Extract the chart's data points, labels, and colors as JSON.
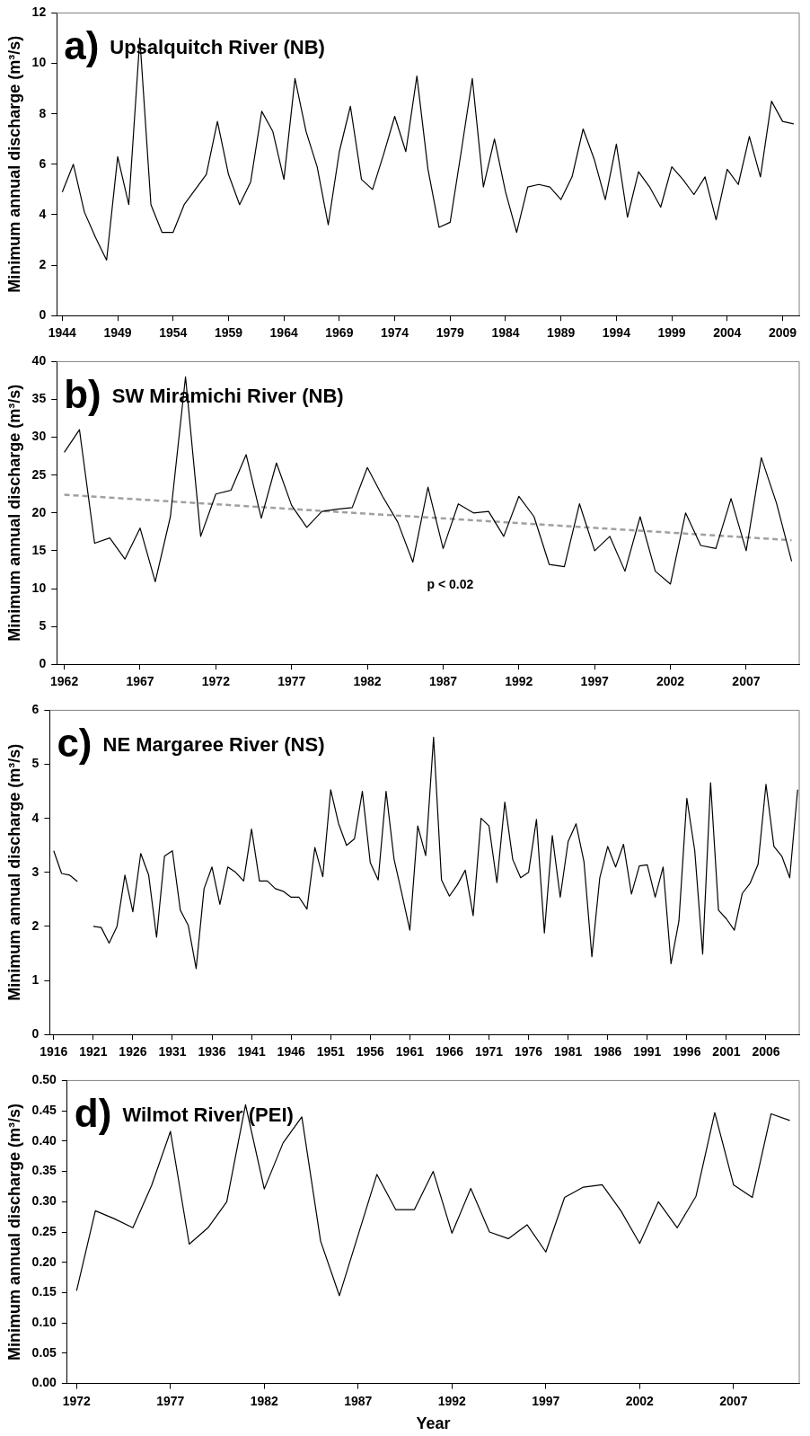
{
  "chart_data": [
    {
      "type": "line",
      "title": "a) Upsalquitch River (NB)",
      "ylabel": "Minimum annual discharge (m³/s)",
      "grid": false,
      "marker": "none",
      "line_style": "solid",
      "x": [
        1944,
        1945,
        1946,
        1947,
        1948,
        1949,
        1950,
        1951,
        1952,
        1953,
        1954,
        1955,
        1956,
        1957,
        1958,
        1959,
        1960,
        1961,
        1962,
        1963,
        1964,
        1965,
        1966,
        1967,
        1968,
        1969,
        1970,
        1971,
        1972,
        1973,
        1974,
        1975,
        1976,
        1977,
        1978,
        1979,
        1980,
        1981,
        1982,
        1983,
        1984,
        1985,
        1986,
        1987,
        1988,
        1989,
        1990,
        1991,
        1992,
        1993,
        1994,
        1995,
        1996,
        1997,
        1998,
        1999,
        2000,
        2001,
        2002,
        2003,
        2004,
        2005,
        2006,
        2007,
        2008,
        2009,
        2010
      ],
      "series": [
        {
          "color": "#000000",
          "values": [
            4.9,
            6.0,
            4.1,
            3.1,
            2.2,
            6.3,
            4.4,
            11.0,
            4.4,
            3.3,
            3.3,
            4.4,
            5.0,
            5.6,
            7.7,
            5.6,
            4.4,
            5.3,
            8.1,
            7.3,
            5.4,
            9.4,
            7.3,
            5.9,
            3.6,
            6.5,
            8.3,
            5.4,
            5.0,
            6.4,
            7.9,
            6.5,
            9.5,
            5.8,
            3.5,
            3.7,
            6.5,
            9.4,
            5.1,
            7.0,
            4.9,
            3.3,
            5.1,
            5.2,
            5.1,
            4.6,
            5.5,
            7.4,
            6.2,
            4.6,
            6.8,
            3.9,
            5.7,
            5.1,
            4.3,
            5.9,
            5.4,
            4.8,
            5.5,
            3.8,
            5.8,
            5.2,
            7.1,
            5.5,
            8.5,
            7.7,
            7.6
          ]
        }
      ],
      "xlim": [
        1943.5,
        2010.5
      ],
      "xticks": [
        1944,
        1949,
        1954,
        1959,
        1964,
        1969,
        1974,
        1979,
        1984,
        1989,
        1994,
        1999,
        2004,
        2009
      ],
      "ylim": [
        0,
        12
      ],
      "yticks": [
        0,
        2,
        4,
        6,
        8,
        10,
        12
      ]
    },
    {
      "type": "line",
      "title": "b) SW Miramichi River (NB)",
      "ylabel": "Minimum annual discharge (m³/s)",
      "grid": false,
      "marker": "none",
      "annotations": [
        "p < 0.02"
      ],
      "x": [
        1962,
        1963,
        1964,
        1965,
        1966,
        1967,
        1968,
        1969,
        1970,
        1971,
        1972,
        1973,
        1974,
        1975,
        1976,
        1977,
        1978,
        1979,
        1980,
        1981,
        1982,
        1983,
        1984,
        1985,
        1986,
        1987,
        1988,
        1989,
        1990,
        1991,
        1992,
        1993,
        1994,
        1995,
        1996,
        1997,
        1998,
        1999,
        2000,
        2001,
        2002,
        2003,
        2004,
        2005,
        2006,
        2007,
        2008,
        2009,
        2010
      ],
      "series": [
        {
          "color": "#000000",
          "line_style": "solid",
          "values": [
            28,
            31,
            16,
            16.7,
            13.9,
            18,
            10.9,
            19.5,
            38,
            16.9,
            22.5,
            23,
            27.7,
            19.3,
            26.6,
            21,
            18.1,
            20.2,
            20.5,
            20.7,
            26,
            22.2,
            18.8,
            13.5,
            23.4,
            15.3,
            21.2,
            20,
            20.2,
            16.9,
            22.2,
            19.5,
            13.2,
            12.9,
            21.2,
            15,
            16.9,
            12.3,
            19.5,
            12.3,
            10.6,
            20,
            15.7,
            15.3,
            21.9,
            15,
            27.3,
            21.3,
            13.6
          ]
        },
        {
          "type": "line",
          "color": "#a0a0a0",
          "line_style": "dashed",
          "x": [
            1962,
            2010
          ],
          "values": [
            22.4,
            16.4
          ]
        }
      ],
      "xlim": [
        1961.5,
        2010.5
      ],
      "xticks": [
        1962,
        1967,
        1972,
        1977,
        1982,
        1987,
        1992,
        1997,
        2002,
        2007
      ],
      "ylim": [
        0,
        40
      ],
      "yticks": [
        0,
        5,
        10,
        15,
        20,
        25,
        30,
        35,
        40
      ]
    },
    {
      "type": "line",
      "title": "c) NE Margaree River (NS)",
      "ylabel": "Minimum annual discharge (m³/s)",
      "grid": false,
      "marker": "none",
      "line_style": "solid",
      "x": [
        1916,
        1917,
        1918,
        1919,
        1920,
        1921,
        1922,
        1923,
        1924,
        1925,
        1926,
        1927,
        1928,
        1929,
        1930,
        1931,
        1932,
        1933,
        1934,
        1935,
        1936,
        1937,
        1938,
        1939,
        1940,
        1941,
        1942,
        1943,
        1944,
        1945,
        1946,
        1947,
        1948,
        1949,
        1950,
        1951,
        1952,
        1953,
        1954,
        1955,
        1956,
        1957,
        1958,
        1959,
        1960,
        1961,
        1962,
        1963,
        1964,
        1965,
        1966,
        1967,
        1968,
        1969,
        1970,
        1971,
        1972,
        1973,
        1974,
        1975,
        1976,
        1977,
        1978,
        1979,
        1980,
        1981,
        1982,
        1983,
        1984,
        1985,
        1986,
        1987,
        1988,
        1989,
        1990,
        1991,
        1992,
        1993,
        1994,
        1995,
        1996,
        1997,
        1998,
        1999,
        2000,
        2001,
        2002,
        2003,
        2004,
        2005,
        2006,
        2007,
        2008,
        2009,
        2010
      ],
      "series": [
        {
          "color": "#000000",
          "values": [
            3.4,
            2.98,
            2.95,
            2.83,
            null,
            2.0,
            1.98,
            1.69,
            2.0,
            2.95,
            2.27,
            3.35,
            2.95,
            1.8,
            3.3,
            3.4,
            2.3,
            2.02,
            1.22,
            2.7,
            3.1,
            2.41,
            3.1,
            3.0,
            2.84,
            3.8,
            2.84,
            2.84,
            2.7,
            2.65,
            2.54,
            2.54,
            2.32,
            3.46,
            2.92,
            4.53,
            3.9,
            3.5,
            3.62,
            4.5,
            3.18,
            2.86,
            4.5,
            3.25,
            2.6,
            1.93,
            3.86,
            3.31,
            5.5,
            2.86,
            2.56,
            2.77,
            3.04,
            2.2,
            4.0,
            3.86,
            2.81,
            4.3,
            3.24,
            2.9,
            3.0,
            3.98,
            1.88,
            3.68,
            2.54,
            3.57,
            3.9,
            3.2,
            1.44,
            2.9,
            3.48,
            3.1,
            3.52,
            2.6,
            3.12,
            3.14,
            2.54,
            3.1,
            1.31,
            2.1,
            4.37,
            3.4,
            1.49,
            4.66,
            2.3,
            2.14,
            1.93,
            2.61,
            2.8,
            3.15,
            4.63,
            3.48,
            3.3,
            2.9,
            4.53
          ]
        }
      ],
      "xlim": [
        1915.5,
        2010.2
      ],
      "xticks": [
        1916,
        1921,
        1926,
        1931,
        1936,
        1941,
        1946,
        1951,
        1956,
        1961,
        1966,
        1971,
        1976,
        1981,
        1986,
        1991,
        1996,
        2001,
        2006
      ],
      "ylim": [
        0,
        6
      ],
      "yticks": [
        0,
        1,
        2,
        3,
        4,
        5,
        6
      ]
    },
    {
      "type": "line",
      "title": "d) Wilmot River (PEI)",
      "ylabel": "Minimum annual discharge (m³/s)",
      "xlabel": "Year",
      "grid": false,
      "marker": "none",
      "line_style": "solid",
      "x": [
        1972,
        1973,
        1974,
        1975,
        1976,
        1977,
        1978,
        1979,
        1980,
        1981,
        1982,
        1983,
        1984,
        1985,
        1986,
        1987,
        1988,
        1989,
        1990,
        1991,
        1992,
        1993,
        1994,
        1995,
        1996,
        1997,
        1998,
        1999,
        2000,
        2001,
        2002,
        2003,
        2004,
        2005,
        2006,
        2007,
        2008,
        2009,
        2010
      ],
      "series": [
        {
          "color": "#000000",
          "values": [
            0.153,
            0.285,
            0.272,
            0.257,
            0.327,
            0.416,
            0.23,
            0.257,
            0.3,
            0.46,
            0.321,
            0.397,
            0.44,
            0.235,
            0.145,
            0.245,
            0.345,
            0.287,
            0.287,
            0.35,
            0.248,
            0.322,
            0.25,
            0.239,
            0.262,
            0.217,
            0.307,
            0.324,
            0.328,
            0.285,
            0.231,
            0.3,
            0.257,
            0.309,
            0.447,
            0.328,
            0.307,
            0.445,
            0.434
          ]
        }
      ],
      "xlim": [
        1971.5,
        2010.5
      ],
      "xticks": [
        1972,
        1977,
        1982,
        1987,
        1992,
        1997,
        2002,
        2007
      ],
      "ylim": [
        0,
        0.5
      ],
      "yticks": [
        {
          "value": 0,
          "label": "0.00"
        },
        {
          "value": 0.05,
          "label": "0.05"
        },
        {
          "value": 0.1,
          "label": "0.10"
        },
        {
          "value": 0.15,
          "label": "0.15"
        },
        {
          "value": 0.2,
          "label": "0.20"
        },
        {
          "value": 0.25,
          "label": "0.25"
        },
        {
          "value": 0.3,
          "label": "0.30"
        },
        {
          "value": 0.35,
          "label": "0.35"
        },
        {
          "value": 0.4,
          "label": "0.40"
        },
        {
          "value": 0.45,
          "label": "0.45"
        },
        {
          "value": 0.5,
          "label": "0.50"
        }
      ]
    }
  ]
}
